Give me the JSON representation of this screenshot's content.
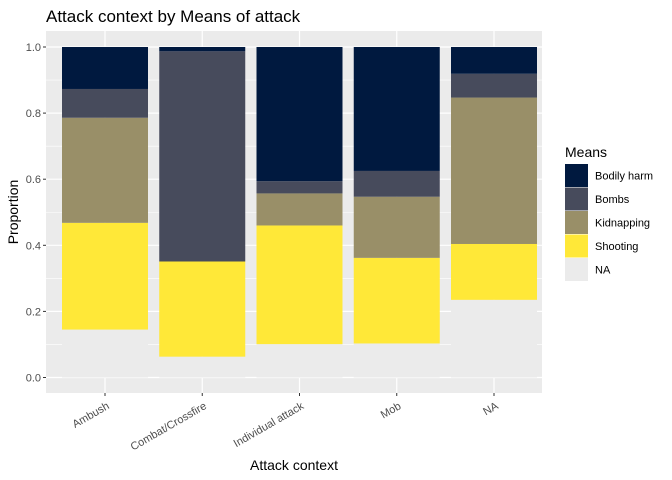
{
  "chart_data": {
    "type": "bar",
    "stacked": true,
    "title": "Attack context by Means of attack",
    "xlabel": "Attack context",
    "ylabel": "Proportion",
    "ylim": [
      0,
      1
    ],
    "yticks": [
      "0.0",
      "0.2",
      "0.4",
      "0.6",
      "0.8",
      "1.0"
    ],
    "grid": true,
    "legend": {
      "title": "Means",
      "position": "right"
    },
    "categories": [
      "Ambush",
      "Combat/Crossfire",
      "Individual attack",
      "Mob",
      "NA"
    ],
    "series": [
      {
        "name": "NA",
        "color": "#ebebeb",
        "values": [
          0.145,
          0.063,
          0.101,
          0.103,
          0.235
        ]
      },
      {
        "name": "Shooting",
        "color": "#ffe838",
        "values": [
          0.323,
          0.288,
          0.359,
          0.259,
          0.169
        ]
      },
      {
        "name": "Kidnapping",
        "color": "#998f68",
        "values": [
          0.318,
          0.0,
          0.097,
          0.185,
          0.443
        ]
      },
      {
        "name": "Bombs",
        "color": "#474b5c",
        "values": [
          0.087,
          0.636,
          0.037,
          0.078,
          0.072
        ]
      },
      {
        "name": "Bodily harm",
        "color": "#00193f",
        "values": [
          0.127,
          0.013,
          0.406,
          0.375,
          0.081
        ]
      }
    ],
    "legend_order": [
      "Bodily harm",
      "Bombs",
      "Kidnapping",
      "Shooting",
      "NA"
    ]
  }
}
